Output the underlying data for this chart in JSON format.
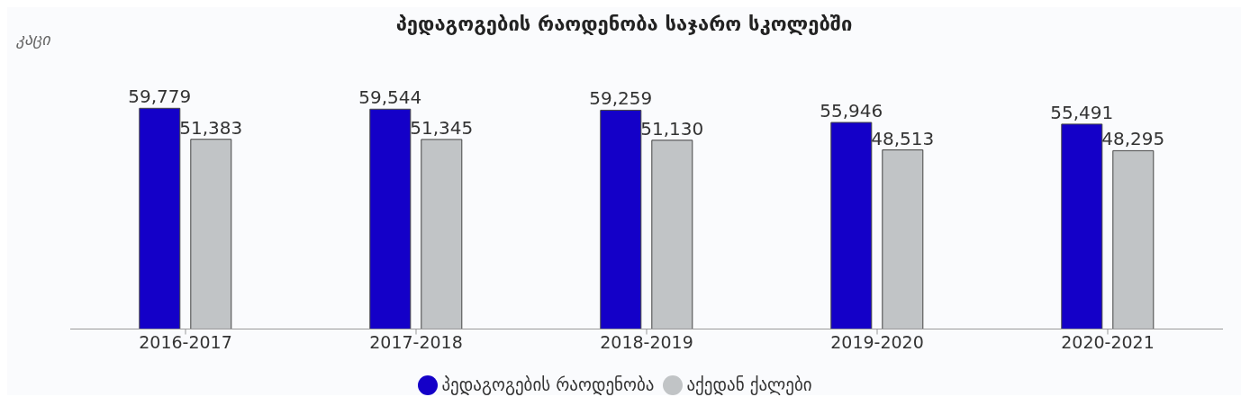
{
  "chart_data": {
    "type": "bar",
    "title": "პედაგოგების რაოდენობა საჯარო სკოლებში",
    "ylabel": "კაცი",
    "categories": [
      "2016-2017",
      "2017-2018",
      "2018-2019",
      "2019-2020",
      "2020-2021"
    ],
    "series": [
      {
        "name": "პედაგოგების რაოდენობა",
        "color": "#1400c8",
        "values": [
          59779,
          59544,
          59259,
          55946,
          55491
        ],
        "value_labels": [
          "59,779",
          "59,544",
          "59,259",
          "55,946",
          "55,491"
        ]
      },
      {
        "name": "აქედან ქალები",
        "color": "#c1c4c6",
        "values": [
          51383,
          51345,
          51130,
          48513,
          48295
        ],
        "value_labels": [
          "51,383",
          "51,345",
          "51,130",
          "48,513",
          "48,295"
        ]
      }
    ],
    "legend": "bottom",
    "tick_labels": "x"
  }
}
